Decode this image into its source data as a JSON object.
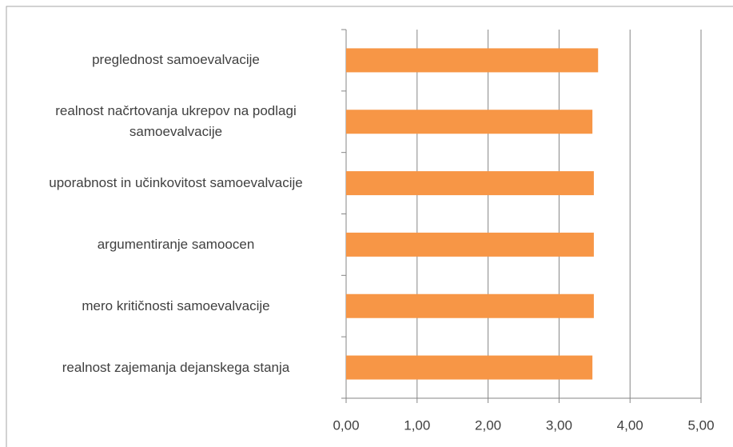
{
  "chart_data": {
    "type": "bar",
    "orientation": "horizontal",
    "categories": [
      "preglednost samoevalvacije",
      "realnost načrtovanja ukrepov na podlagi samoevalvacije",
      "uporabnost in učinkovitost samoevalvacije",
      "argumentiranje samoocen",
      "mero kritičnosti samoevalvacije",
      "realnost zajemanja dejanskega stanja"
    ],
    "values": [
      3.55,
      3.47,
      3.49,
      3.49,
      3.49,
      3.47
    ],
    "color": "#f79646",
    "xlim": [
      0,
      5
    ],
    "xticks": [
      {
        "value": 0,
        "label": "0,00"
      },
      {
        "value": 1,
        "label": "1,00"
      },
      {
        "value": 2,
        "label": "2,00"
      },
      {
        "value": 3,
        "label": "3,00"
      },
      {
        "value": 4,
        "label": "4,00"
      },
      {
        "value": 5,
        "label": "5,00"
      }
    ],
    "grid": true
  }
}
